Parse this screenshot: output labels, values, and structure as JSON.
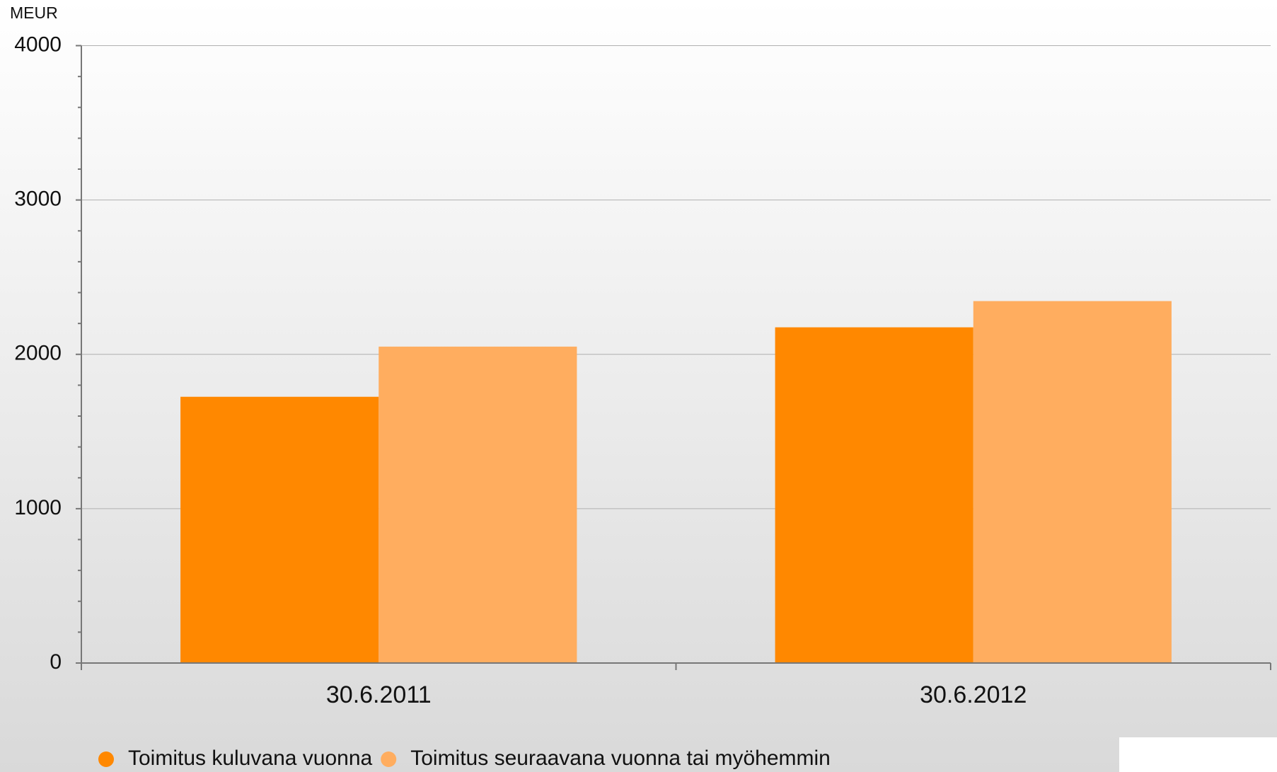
{
  "chart_data": {
    "type": "bar",
    "y_label": "MEUR",
    "categories": [
      "30.6.2011",
      "30.6.2012"
    ],
    "series": [
      {
        "name": "Toimitus kuluvana vuonna",
        "color": "#ff8800",
        "values": [
          1725,
          2175
        ]
      },
      {
        "name": "Toimitus seuraavana vuonna tai myöhemmin",
        "color": "#ffad5f",
        "values": [
          2050,
          2345
        ]
      }
    ],
    "ylim": [
      0,
      4000
    ],
    "yticks": [
      0,
      1000,
      2000,
      3000,
      4000
    ],
    "grid": true,
    "legend": "bottom-left"
  }
}
